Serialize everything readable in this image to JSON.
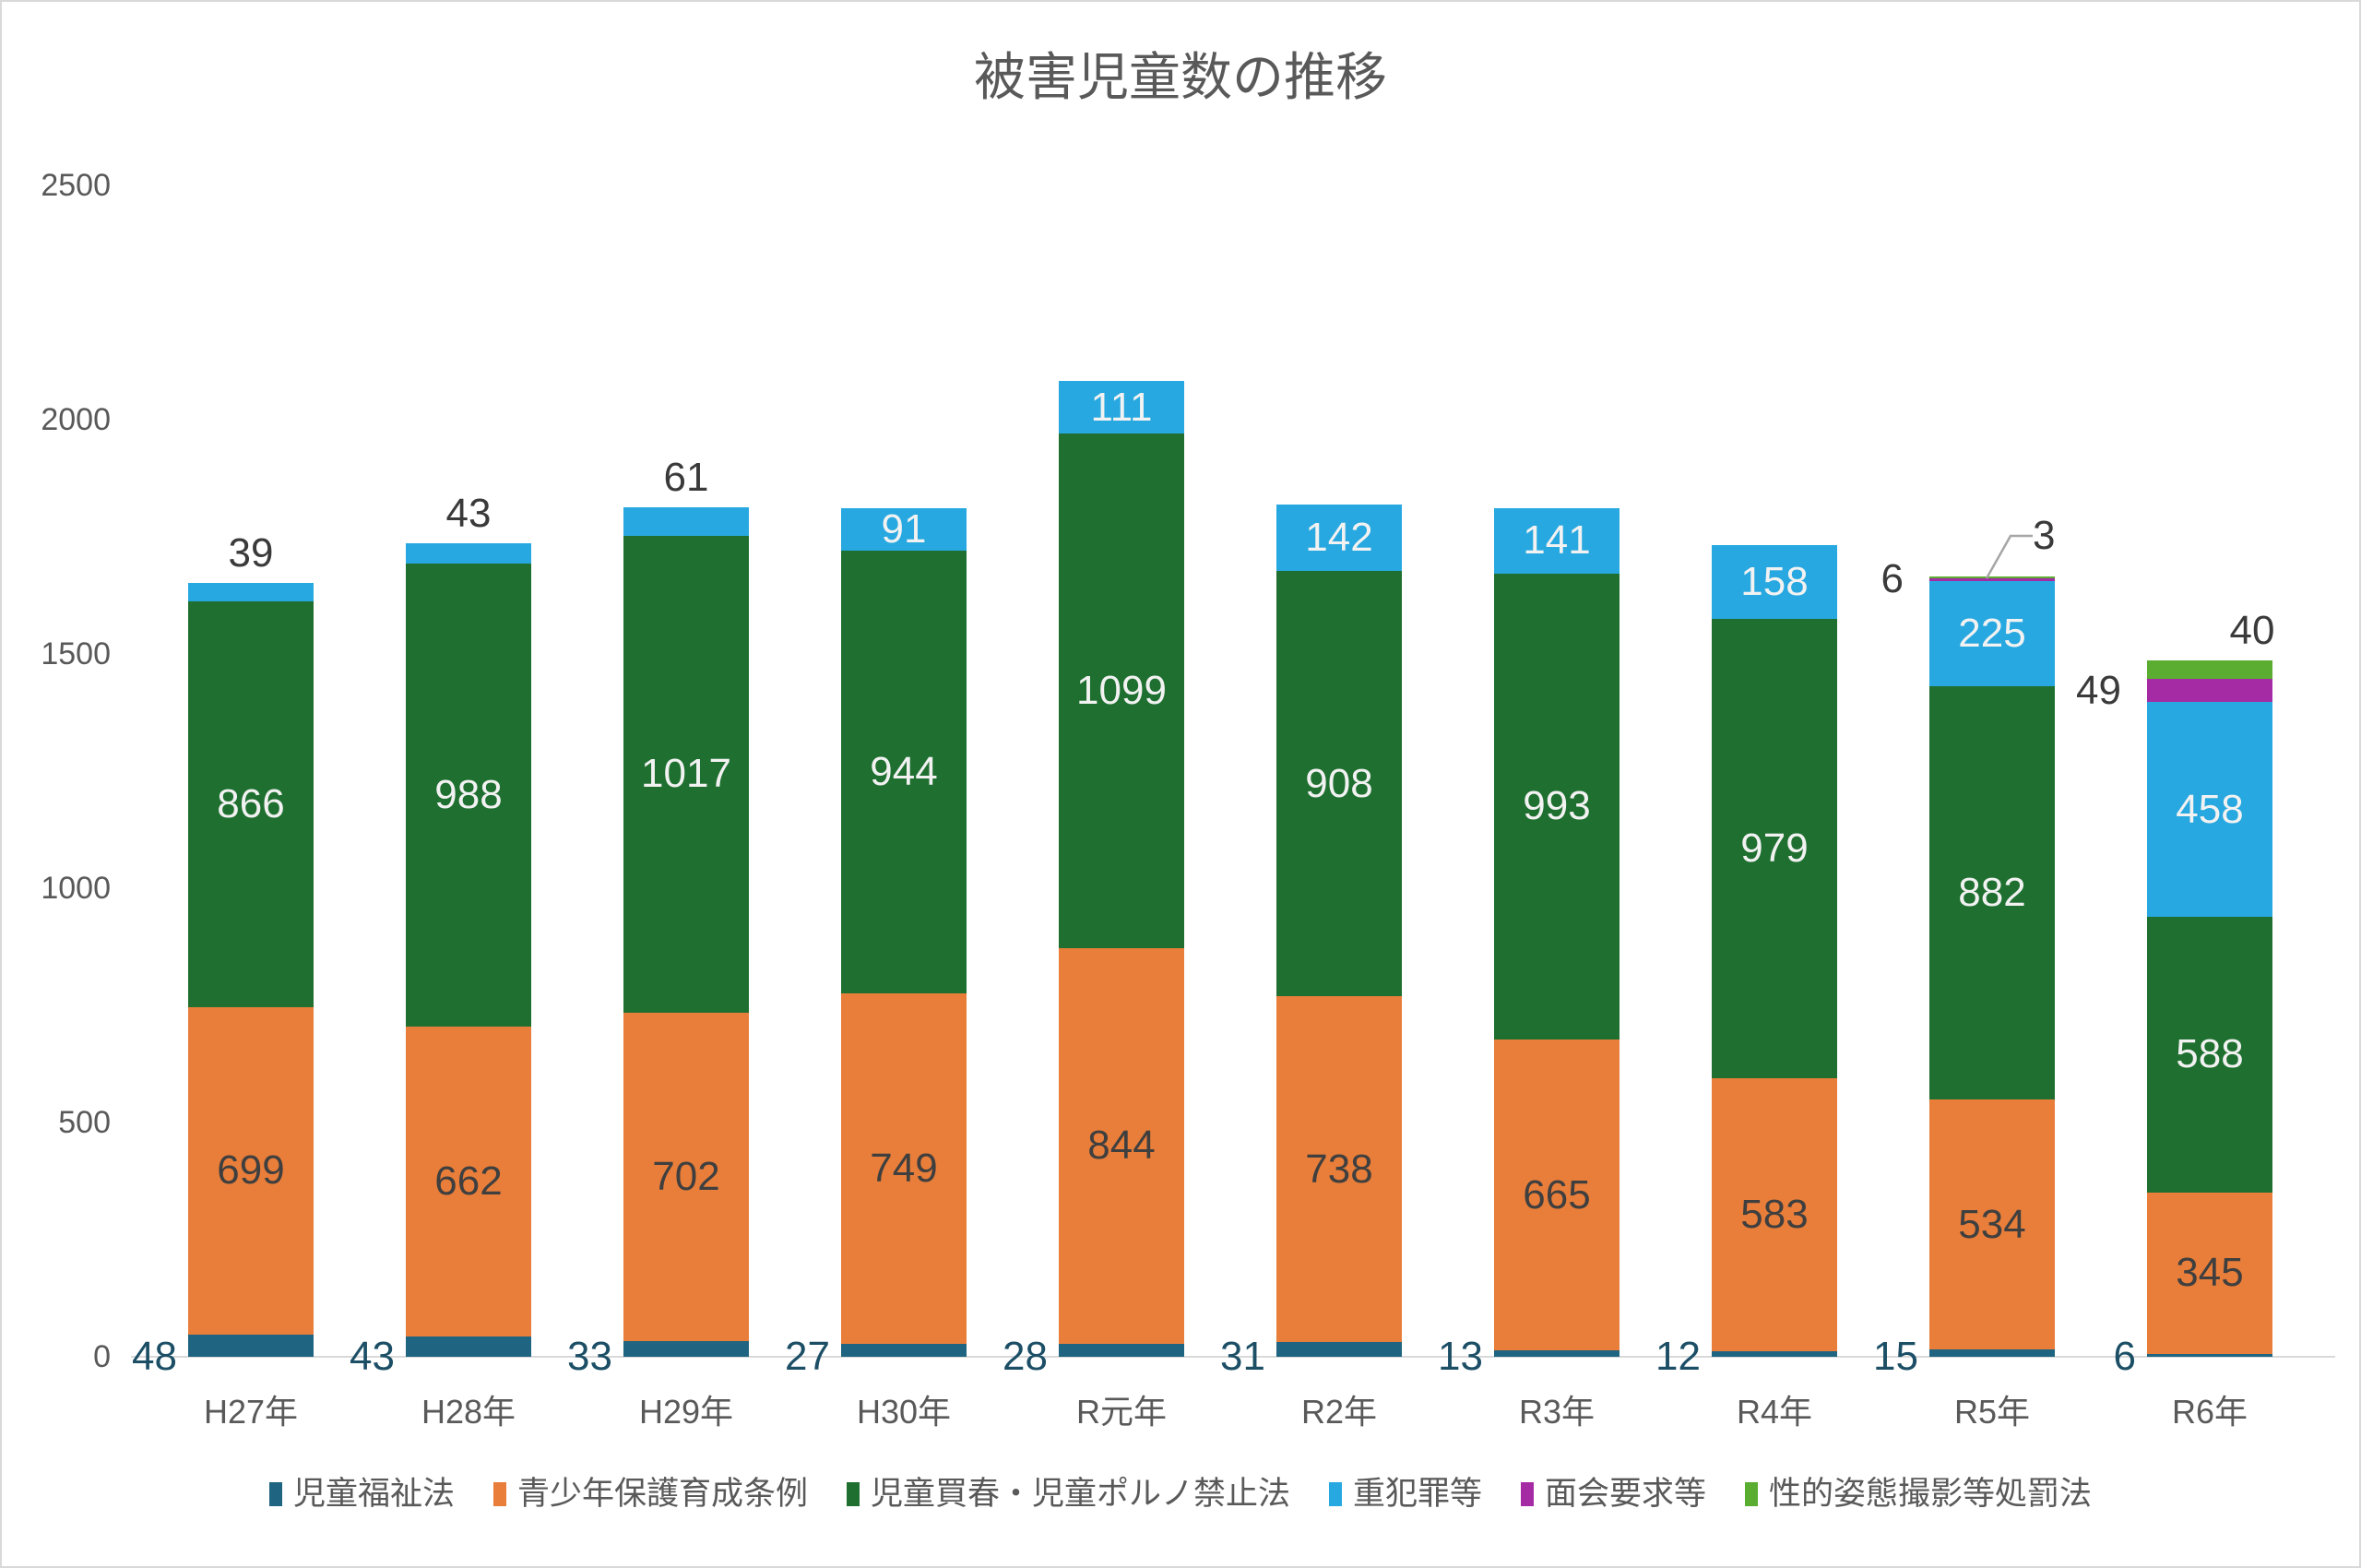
{
  "title": "被害児童数の推移",
  "chart_data": {
    "type": "bar",
    "stacked": true,
    "title": "被害児童数の推移",
    "categories": [
      "H27年",
      "H28年",
      "H29年",
      "H30年",
      "R元年",
      "R2年",
      "R3年",
      "R4年",
      "R5年",
      "R6年"
    ],
    "series": [
      {
        "name": "児童福祉法",
        "color": "#1F6480",
        "values": [
          48,
          43,
          33,
          27,
          28,
          31,
          13,
          12,
          15,
          6
        ]
      },
      {
        "name": "青少年保護育成条例",
        "color": "#E87E3A",
        "values": [
          699,
          662,
          702,
          749,
          844,
          738,
          665,
          583,
          534,
          345
        ]
      },
      {
        "name": "児童買春・児童ポルノ禁止法",
        "color": "#1F7030",
        "values": [
          866,
          988,
          1017,
          944,
          1099,
          908,
          993,
          979,
          882,
          588
        ]
      },
      {
        "name": "重犯罪等",
        "color": "#27A8E0",
        "values": [
          39,
          43,
          61,
          91,
          111,
          142,
          141,
          158,
          225,
          458
        ]
      },
      {
        "name": "面会要求等",
        "color": "#A52BA5",
        "values": [
          0,
          0,
          0,
          0,
          0,
          0,
          0,
          0,
          6,
          49
        ]
      },
      {
        "name": "性的姿態撮影等処罰法",
        "color": "#5BAD31",
        "values": [
          0,
          0,
          0,
          0,
          0,
          0,
          0,
          0,
          3,
          40
        ]
      }
    ],
    "y_axis": {
      "min": 0,
      "max": 2500,
      "step": 500,
      "ticks": [
        "0",
        "500",
        "1000",
        "1500",
        "2000",
        "2500"
      ]
    },
    "grid": false,
    "legend_position": "bottom"
  },
  "colors": {
    "background": "#ffffff",
    "title_text": "#595959",
    "axis_text": "#595959",
    "baseline": "#d9d9d9",
    "outside_label": "#3a3a3a",
    "series0_label": "#1c4f66",
    "inside_label_dark": "#3f3f3f",
    "inside_label_light": "#f2f2f2",
    "leader_line": "#a6a6a6"
  }
}
